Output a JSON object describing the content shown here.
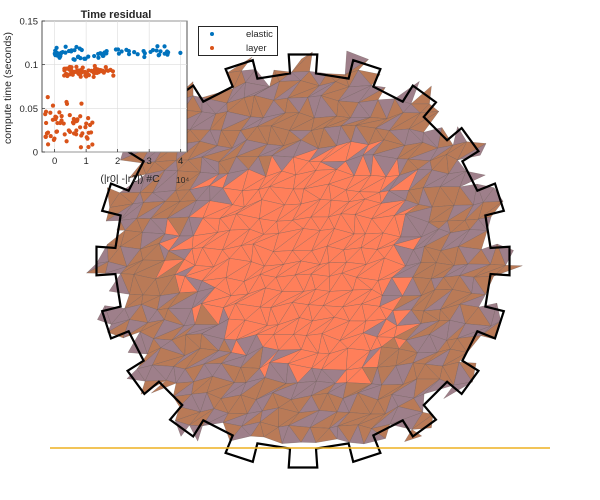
{
  "chart_data": [
    {
      "type": "scatter",
      "title": "Time residual",
      "xlabel": "(|r0| -|r1|) #C",
      "ylabel": "compute time (seconds)",
      "x_exponent_label": "10⁴",
      "xlim": [
        -0.4,
        4.2
      ],
      "ylim": [
        0,
        0.15
      ],
      "x_ticks": [
        "0",
        "1",
        "2",
        "3",
        "4"
      ],
      "y_ticks": [
        "0",
        "0.05",
        "0.1",
        "0.15"
      ],
      "grid": true,
      "legend_placement": "outside top-right",
      "series": [
        {
          "name": "elastic",
          "color": "#0072BD",
          "cluster": {
            "x_min": 0,
            "x_max": 4,
            "y_center": 0.113,
            "y_spread": 0.009
          }
        },
        {
          "name": "layer",
          "color": "#D95319",
          "clusters": [
            {
              "x_min": 0.3,
              "x_max": 2,
              "y_center": 0.092,
              "y_spread": 0.008
            },
            {
              "x_min": -0.3,
              "x_max": 1.2,
              "y_center": 0.03,
              "y_spread": 0.035
            }
          ]
        }
      ]
    },
    {
      "type": "mesh",
      "colors": {
        "inner": "#FF7F5A",
        "middle": "#B97A57",
        "outer": "#9E7F8A",
        "outline": "#000000"
      },
      "base_line_color": "#EDB120",
      "teeth": 20
    }
  ]
}
